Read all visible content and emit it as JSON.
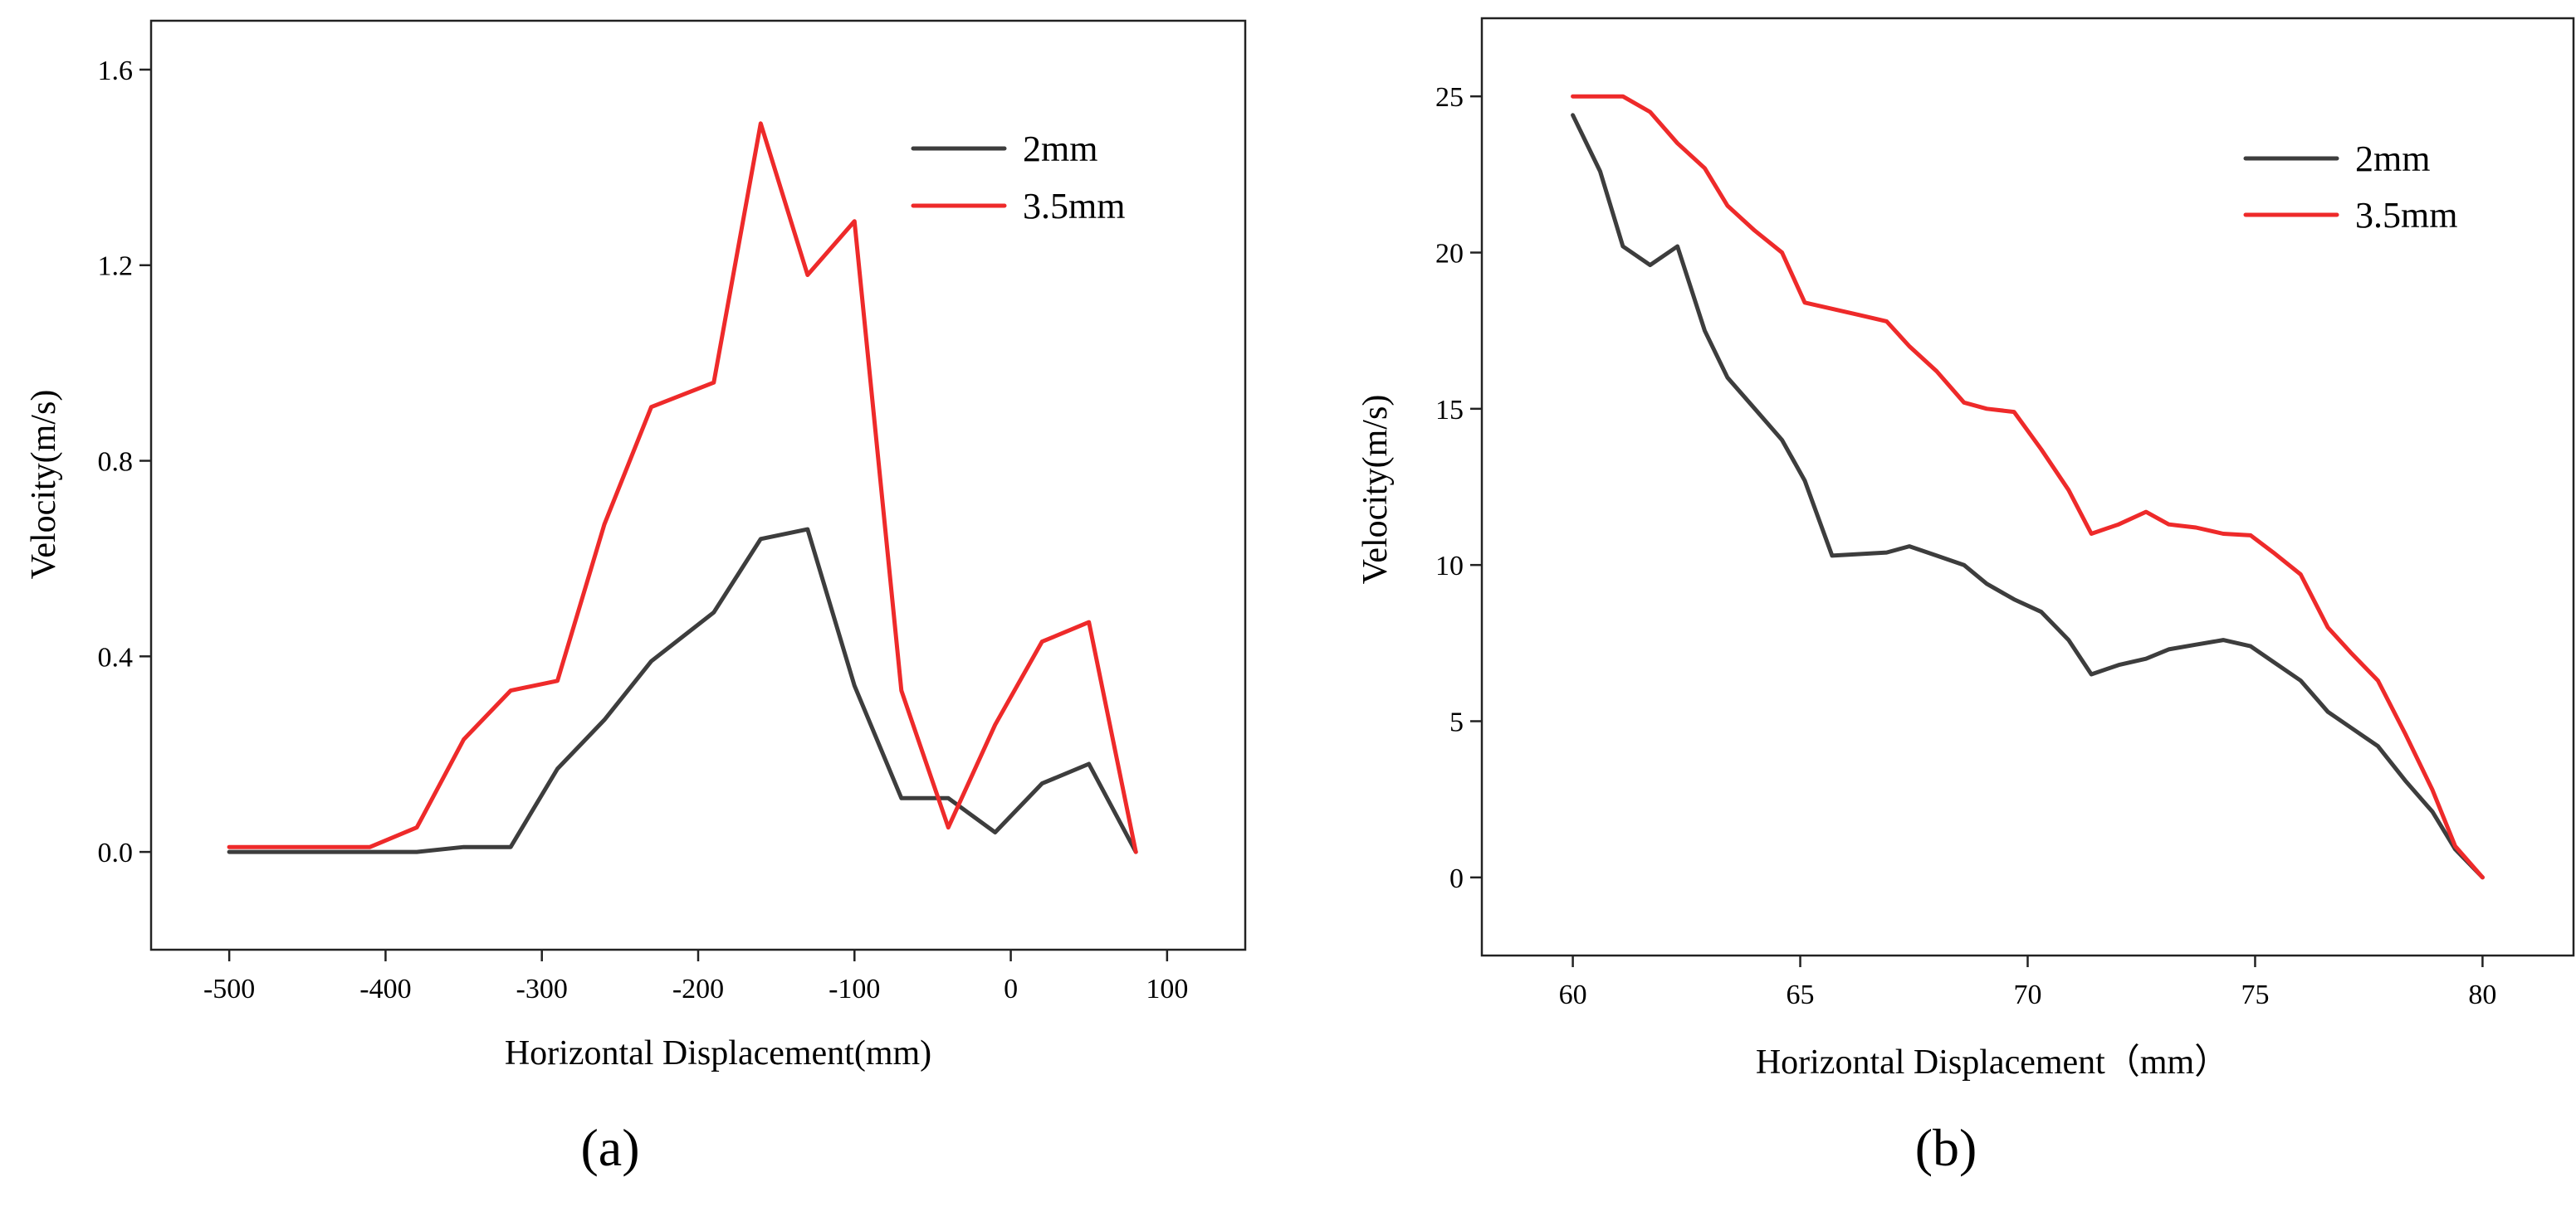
{
  "colors": {
    "black_series": "#3d3d3d",
    "red_series": "#ee2a2a",
    "axis": "#222222"
  },
  "chart_data": [
    {
      "type": "line",
      "panel_label": "(a)",
      "title": "",
      "xlabel": "Horizontal Displacement(mm)",
      "ylabel": "Velocity(m/s)",
      "xlim": [
        -550,
        150
      ],
      "ylim": [
        -0.2,
        1.7
      ],
      "x_ticks": [
        -500,
        -400,
        -300,
        -200,
        -100,
        0,
        100
      ],
      "x_tick_labels": [
        "-500",
        "-400",
        "-300",
        "-200",
        "-100",
        "0",
        "100"
      ],
      "y_ticks": [
        0.0,
        0.4,
        0.8,
        1.2,
        1.6
      ],
      "y_tick_labels": [
        "0.0",
        "0.4",
        "0.8",
        "1.2",
        "1.6"
      ],
      "legend_position": "top-right",
      "series": [
        {
          "name": "2mm",
          "color": "#3d3d3d",
          "x": [
            -500,
            -470,
            -440,
            -410,
            -380,
            -350,
            -320,
            -290,
            -260,
            -230,
            -190,
            -160,
            -130,
            -100,
            -70,
            -40,
            -10,
            20,
            50,
            80
          ],
          "values": [
            0.0,
            0.0,
            0.0,
            0.0,
            0.0,
            0.01,
            0.01,
            0.17,
            0.27,
            0.39,
            0.49,
            0.64,
            0.66,
            0.34,
            0.11,
            0.11,
            0.04,
            0.14,
            0.18,
            0.0
          ]
        },
        {
          "name": "3.5mm",
          "color": "#ee2a2a",
          "x": [
            -500,
            -470,
            -440,
            -410,
            -380,
            -350,
            -320,
            -290,
            -260,
            -230,
            -190,
            -160,
            -130,
            -100,
            -70,
            -40,
            -10,
            20,
            50,
            80
          ],
          "values": [
            0.01,
            0.01,
            0.01,
            0.01,
            0.05,
            0.23,
            0.33,
            0.35,
            0.67,
            0.91,
            0.96,
            1.49,
            1.18,
            1.29,
            0.33,
            0.05,
            0.26,
            0.43,
            0.47,
            0.0
          ]
        }
      ]
    },
    {
      "type": "line",
      "panel_label": "(b)",
      "title": "",
      "xlabel": "Horizontal Displacement（mm）",
      "ylabel": "Velocity(m/s)",
      "xlim": [
        58,
        82
      ],
      "ylim": [
        -2.5,
        27.5
      ],
      "x_ticks": [
        60,
        65,
        70,
        75,
        80
      ],
      "x_tick_labels": [
        "60",
        "65",
        "70",
        "75",
        "80"
      ],
      "y_ticks": [
        0,
        5,
        10,
        15,
        20,
        25
      ],
      "y_tick_labels": [
        "0",
        "5",
        "10",
        "15",
        "20",
        "25"
      ],
      "legend_position": "top-right",
      "series": [
        {
          "name": "2mm",
          "color": "#3d3d3d",
          "x": [
            60,
            60.6,
            61.1,
            61.7,
            62.3,
            62.9,
            63.4,
            64.0,
            64.6,
            65.1,
            65.7,
            66.3,
            66.9,
            67.4,
            68.0,
            68.6,
            69.1,
            69.7,
            70.3,
            70.9,
            71.4,
            72.0,
            72.6,
            73.1,
            73.7,
            74.3,
            74.9,
            75.4,
            76.0,
            76.6,
            77.1,
            77.7,
            78.3,
            78.9,
            79.4,
            80
          ],
          "values": [
            24.4,
            22.6,
            20.2,
            19.6,
            20.2,
            17.5,
            16.0,
            15.0,
            14.0,
            12.7,
            10.3,
            10.35,
            10.4,
            10.6,
            10.3,
            10.0,
            9.4,
            8.9,
            8.5,
            7.6,
            6.5,
            6.8,
            7.0,
            7.3,
            7.45,
            7.6,
            7.4,
            6.9,
            6.3,
            5.3,
            4.8,
            4.2,
            3.1,
            2.1,
            0.9,
            0.0
          ]
        },
        {
          "name": "3.5mm",
          "color": "#ee2a2a",
          "x": [
            60,
            60.6,
            61.1,
            61.7,
            62.3,
            62.9,
            63.4,
            64.0,
            64.6,
            65.1,
            65.7,
            66.3,
            66.9,
            67.4,
            68.0,
            68.6,
            69.1,
            69.7,
            70.3,
            70.9,
            71.4,
            72.0,
            72.6,
            73.1,
            73.7,
            74.3,
            74.9,
            75.4,
            76.0,
            76.6,
            77.1,
            77.7,
            78.3,
            78.9,
            79.4,
            80
          ],
          "values": [
            25.0,
            25.0,
            25.0,
            24.5,
            23.5,
            22.7,
            21.5,
            20.7,
            20.0,
            18.4,
            18.2,
            18.0,
            17.8,
            17.0,
            16.2,
            15.2,
            15.0,
            14.9,
            13.7,
            12.4,
            11.0,
            11.3,
            11.7,
            11.3,
            11.2,
            11.0,
            10.95,
            10.4,
            9.7,
            8.0,
            7.2,
            6.3,
            4.6,
            2.8,
            1.0,
            0.0
          ]
        }
      ]
    }
  ]
}
